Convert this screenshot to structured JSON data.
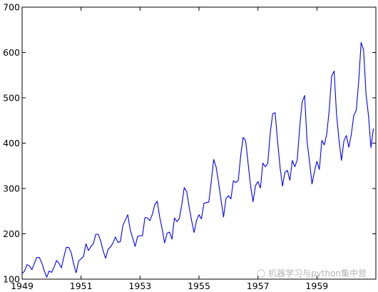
{
  "chart_data": {
    "type": "line",
    "x_start": "1949-01",
    "frequency": "monthly",
    "series": [
      {
        "color": "#0000ff",
        "values": [
          112,
          118,
          132,
          129,
          121,
          135,
          148,
          148,
          136,
          119,
          104,
          118,
          115,
          126,
          141,
          135,
          125,
          149,
          170,
          170,
          158,
          133,
          114,
          140,
          145,
          150,
          178,
          163,
          172,
          178,
          199,
          199,
          184,
          162,
          146,
          166,
          171,
          180,
          193,
          181,
          183,
          218,
          230,
          242,
          209,
          191,
          172,
          194,
          196,
          196,
          236,
          235,
          229,
          243,
          264,
          272,
          237,
          211,
          180,
          201,
          204,
          188,
          235,
          227,
          234,
          264,
          302,
          293,
          259,
          229,
          203,
          229,
          242,
          233,
          267,
          269,
          270,
          315,
          364,
          347,
          312,
          274,
          237,
          278,
          284,
          277,
          317,
          313,
          318,
          374,
          413,
          405,
          355,
          306,
          271,
          306,
          315,
          301,
          356,
          348,
          355,
          422,
          465,
          467,
          404,
          347,
          305,
          336,
          340,
          318,
          362,
          348,
          363,
          435,
          491,
          505,
          404,
          359,
          310,
          337,
          360,
          342,
          406,
          396,
          420,
          472,
          548,
          559,
          463,
          407,
          362,
          405,
          417,
          391,
          419,
          461,
          472,
          535,
          622,
          606,
          508,
          461,
          390,
          432
        ]
      }
    ],
    "xlim": [
      1949,
      1961
    ],
    "ylim": [
      100,
      700
    ],
    "x_ticks": [
      1949,
      1951,
      1953,
      1955,
      1957,
      1959
    ],
    "x_tick_labels": [
      "1949",
      "1951",
      "1953",
      "1955",
      "1957",
      "1959"
    ],
    "y_ticks": [
      100,
      200,
      300,
      400,
      500,
      600,
      700
    ],
    "y_tick_labels": [
      "100",
      "200",
      "300",
      "400",
      "500",
      "600",
      "700"
    ],
    "grid": false,
    "title": "",
    "xlabel": "",
    "ylabel": ""
  },
  "watermark": {
    "icon": "chat-bubble-icon",
    "text": "机器学习与python集中营"
  }
}
